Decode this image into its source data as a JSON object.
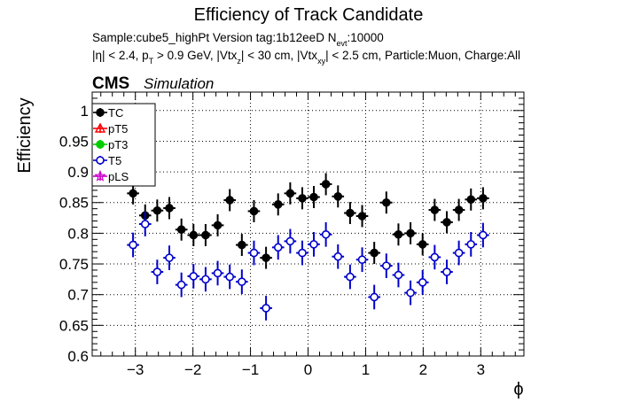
{
  "chart_data": {
    "type": "scatter",
    "title": "Efficiency of Track Candidate",
    "info_line1": "Sample:cube5_highPt   Version tag:1b12eeD  N",
    "info_line1_sub": "evt",
    "info_line1_end": ":10000",
    "info_line2_parts": [
      "|η| < 2.4, p",
      "T",
      " > 0.9 GeV, |Vtx",
      "z",
      "| < 30 cm, |Vtx",
      "xy",
      "| < 2.5 cm, Particle:Muon, Charge:All"
    ],
    "cms_label": "CMS",
    "simulation_label": "Simulation",
    "xlabel": "ϕ",
    "ylabel": "Efficiency",
    "xlim": [
      -3.75,
      3.75
    ],
    "ylim": [
      0.6,
      1.03
    ],
    "xticks": [
      -3,
      -2,
      -1,
      0,
      1,
      2,
      3
    ],
    "xtick_labels": [
      "−3",
      "−2",
      "−1",
      "0",
      "1",
      "2",
      "3"
    ],
    "yticks": [
      0.6,
      0.65,
      0.7,
      0.75,
      0.8,
      0.85,
      0.9,
      0.95,
      1.0
    ],
    "ytick_labels": [
      "0.6",
      "0.65",
      "0.7",
      "0.75",
      "0.8",
      "0.85",
      "0.9",
      "0.95",
      "1"
    ],
    "grid": true,
    "legend_position": "top-left",
    "legend": [
      {
        "name": "TC",
        "color": "#000000",
        "marker": "filled-circle"
      },
      {
        "name": "pT5",
        "color": "#ff0000",
        "marker": "open-triangle"
      },
      {
        "name": "pT3",
        "color": "#00cc00",
        "marker": "filled-circle"
      },
      {
        "name": "T5",
        "color": "#0000cc",
        "marker": "open-circle"
      },
      {
        "name": "pLS",
        "color": "#cc00cc",
        "marker": "open-star"
      }
    ],
    "series": [
      {
        "name": "TC",
        "color": "#000000",
        "marker": "filled-circle",
        "x": [
          -3.04,
          -2.83,
          -2.62,
          -2.41,
          -2.2,
          -1.99,
          -1.78,
          -1.57,
          -1.36,
          -1.15,
          -0.94,
          -0.73,
          -0.52,
          -0.31,
          -0.1,
          0.1,
          0.31,
          0.52,
          0.73,
          0.94,
          1.15,
          1.36,
          1.57,
          1.78,
          1.99,
          2.2,
          2.41,
          2.62,
          2.83,
          3.04
        ],
        "y": [
          0.865,
          0.829,
          0.837,
          0.841,
          0.806,
          0.797,
          0.797,
          0.813,
          0.854,
          0.781,
          0.836,
          0.76,
          0.847,
          0.865,
          0.857,
          0.859,
          0.88,
          0.86,
          0.833,
          0.828,
          0.768,
          0.85,
          0.798,
          0.8,
          0.782,
          0.838,
          0.818,
          0.838,
          0.855,
          0.857
        ],
        "yerr": [
          0.018,
          0.018,
          0.018,
          0.018,
          0.018,
          0.018,
          0.018,
          0.018,
          0.018,
          0.018,
          0.018,
          0.018,
          0.018,
          0.018,
          0.018,
          0.018,
          0.018,
          0.018,
          0.018,
          0.018,
          0.018,
          0.018,
          0.018,
          0.018,
          0.018,
          0.018,
          0.018,
          0.018,
          0.018,
          0.018
        ]
      },
      {
        "name": "T5",
        "color": "#0000cc",
        "marker": "open-circle",
        "x": [
          -3.04,
          -2.83,
          -2.62,
          -2.41,
          -2.2,
          -1.99,
          -1.78,
          -1.57,
          -1.36,
          -1.15,
          -0.94,
          -0.73,
          -0.52,
          -0.31,
          -0.1,
          0.1,
          0.31,
          0.52,
          0.73,
          0.94,
          1.15,
          1.36,
          1.57,
          1.78,
          1.99,
          2.2,
          2.41,
          2.62,
          2.83,
          3.04
        ],
        "y": [
          0.781,
          0.815,
          0.737,
          0.76,
          0.716,
          0.73,
          0.725,
          0.735,
          0.729,
          0.721,
          0.768,
          0.678,
          0.777,
          0.787,
          0.768,
          0.782,
          0.798,
          0.762,
          0.729,
          0.757,
          0.696,
          0.747,
          0.732,
          0.703,
          0.72,
          0.761,
          0.737,
          0.768,
          0.782,
          0.797
        ],
        "yerr": [
          0.02,
          0.02,
          0.02,
          0.02,
          0.02,
          0.02,
          0.02,
          0.02,
          0.02,
          0.02,
          0.02,
          0.02,
          0.02,
          0.02,
          0.02,
          0.02,
          0.02,
          0.02,
          0.02,
          0.02,
          0.02,
          0.02,
          0.02,
          0.02,
          0.02,
          0.02,
          0.02,
          0.02,
          0.02,
          0.02
        ]
      }
    ],
    "xerr_half_width": 0.105
  }
}
